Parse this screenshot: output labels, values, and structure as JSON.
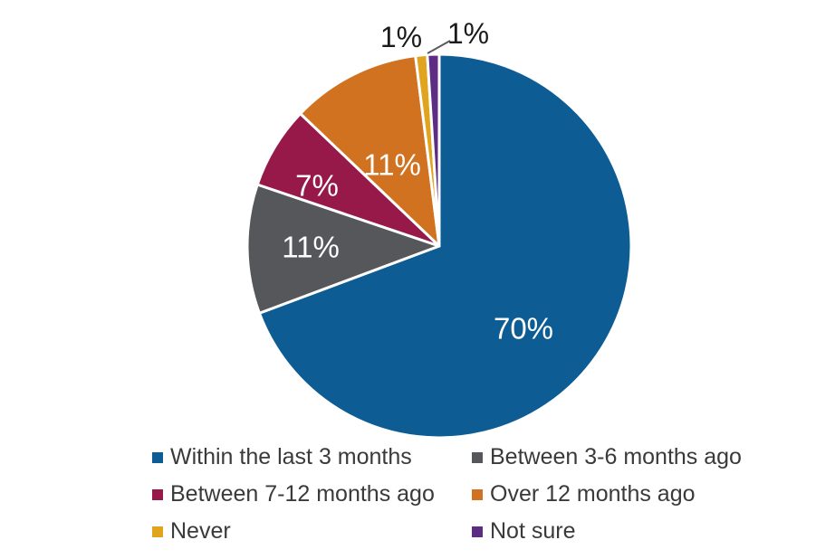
{
  "canvas": {
    "background": "#FFFFFF"
  },
  "chart_data": {
    "type": "pie",
    "title": "",
    "legend_position": "bottom",
    "direction": "clockwise",
    "start_angle_deg": 0,
    "slice_border_color": "#FFFFFF",
    "inside_label_color": "#FFFFFF",
    "outside_label_color": "#1B1B1B",
    "leader_line_color": "#5B5B5B",
    "legend_text_color": "#3A3A3A",
    "series": [
      {
        "label": "Within the last 3 months",
        "value": 70,
        "display": "70%",
        "color": "#0D5C94",
        "label_placement": "inside"
      },
      {
        "label": "Between 3-6 months ago",
        "value": 11,
        "display": "11%",
        "color": "#56575A",
        "label_placement": "inside"
      },
      {
        "label": "Between 7-12 months ago",
        "value": 7,
        "display": "7%",
        "color": "#96194A",
        "label_placement": "inside"
      },
      {
        "label": "Over 12 months ago",
        "value": 11,
        "display": "11%",
        "color": "#D0721F",
        "label_placement": "inside"
      },
      {
        "label": "Never",
        "value": 1,
        "display": "1%",
        "color": "#E0A41F",
        "label_placement": "outside"
      },
      {
        "label": "Not sure",
        "value": 1,
        "display": "1%",
        "color": "#5C2D83",
        "label_placement": "outside"
      }
    ]
  }
}
